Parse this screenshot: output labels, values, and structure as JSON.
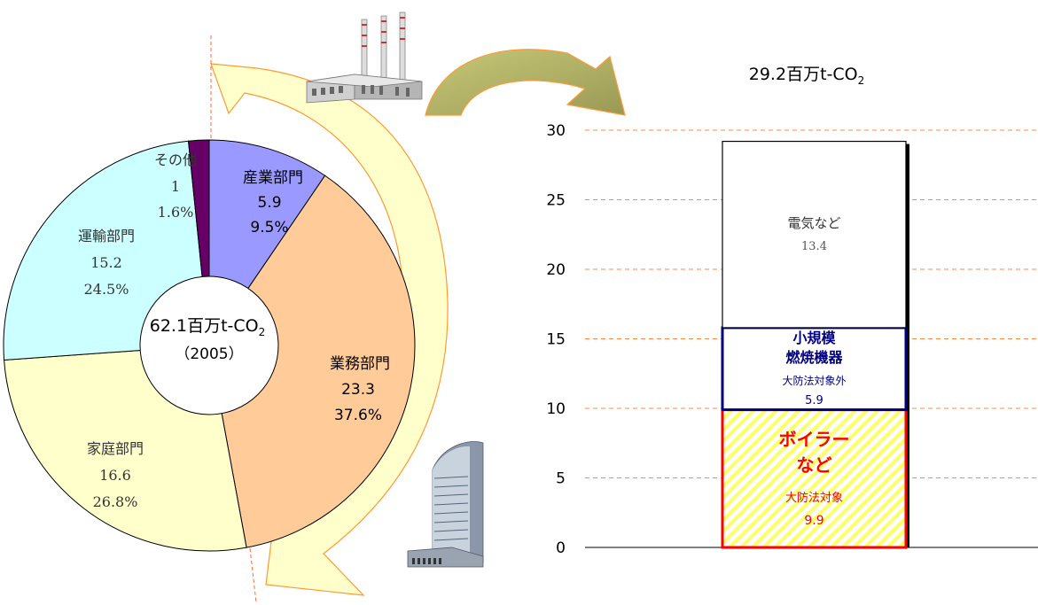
{
  "chart_data": [
    {
      "type": "pie",
      "center_label": {
        "value": "62.1",
        "unit_prefix": "百万t-CO",
        "unit_sub": "2",
        "year": "（2005）"
      },
      "series": [
        {
          "name": "産業部門",
          "value": 5.9,
          "percent": "9.5%",
          "color": "#9999ff"
        },
        {
          "name": "業務部門",
          "value": 23.3,
          "percent": "37.6%",
          "color": "#ffcc99"
        },
        {
          "name": "家庭部門",
          "value": 16.6,
          "percent": "26.8%",
          "color": "#ffffcc"
        },
        {
          "name": "運輸部門",
          "value": 15.2,
          "percent": "24.5%",
          "color": "#ccffff"
        },
        {
          "name": "その他",
          "value": 1,
          "percent": "1.6%",
          "color": "#660066"
        }
      ]
    },
    {
      "type": "bar",
      "title": {
        "value": "29.2",
        "unit_prefix": "百万t-CO",
        "unit_sub": "2"
      },
      "ylim": [
        0,
        30
      ],
      "yticks": [
        0,
        5,
        10,
        15,
        20,
        25,
        30
      ],
      "grid": true,
      "stacked": true,
      "segments": [
        {
          "lines": [
            "ボイラー",
            "など"
          ],
          "sub": "大防法対象",
          "value": 9.9,
          "color": "#ff0000"
        },
        {
          "lines": [
            "小規模",
            "燃焼機器"
          ],
          "sub": "大防法対象外",
          "value": 5.9,
          "color": "#000080"
        },
        {
          "lines": [
            "電気など"
          ],
          "value": 13.4,
          "color": "#333333"
        }
      ]
    }
  ],
  "icons": {
    "factory": "factory-icon",
    "office": "office-building-icon"
  }
}
